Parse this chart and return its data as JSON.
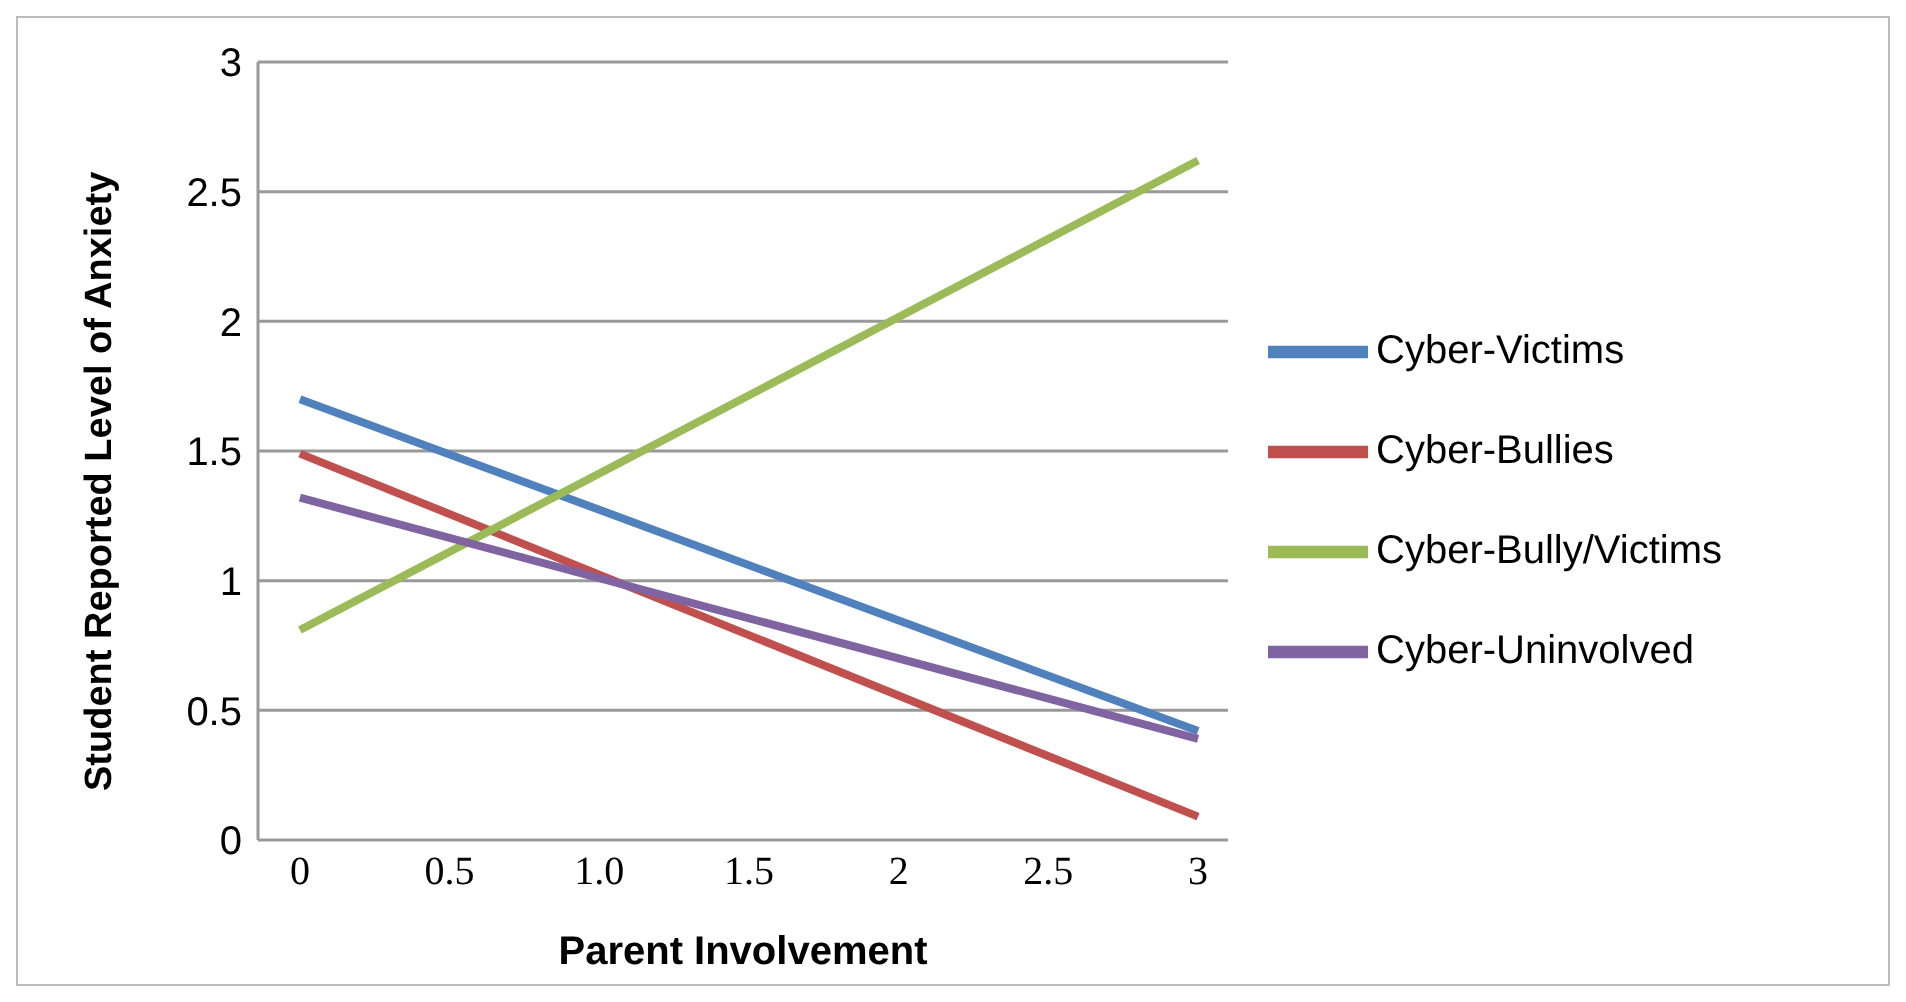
{
  "chart_data": {
    "type": "line",
    "xlabel": "Parent Involvement",
    "ylabel": "Student Reported Level of Anxiety",
    "x": [
      0,
      3
    ],
    "series": [
      {
        "name": "Cyber-Victims",
        "color": "#4f81bd",
        "values": [
          1.7,
          0.42
        ]
      },
      {
        "name": "Cyber-Bullies",
        "color": "#c0504d",
        "values": [
          1.49,
          0.09
        ]
      },
      {
        "name": "Cyber-Bully/Victims",
        "color": "#9bbb59",
        "values": [
          0.81,
          2.62
        ]
      },
      {
        "name": "Cyber-Uninvolved",
        "color": "#8064a2",
        "values": [
          1.32,
          0.39
        ]
      }
    ],
    "xlim": [
      -0.14,
      3.1
    ],
    "xticks": [
      0,
      0.5,
      {
        "value": 1,
        "label": "1.0"
      },
      1.5,
      2,
      2.5,
      3
    ],
    "ylim": [
      0,
      3
    ],
    "yticks": [
      0,
      0.5,
      1,
      1.5,
      2,
      2.5,
      3
    ],
    "grid": "y",
    "legend": "right",
    "marker": "none",
    "line_style": "solid"
  }
}
